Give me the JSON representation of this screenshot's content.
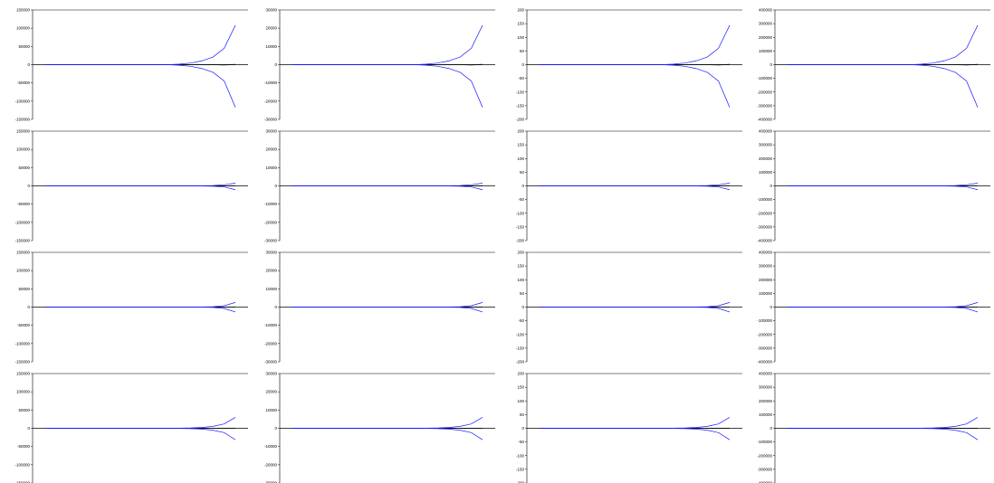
{
  "colors": {
    "band": "#1a1aff",
    "center": "#000000",
    "axis": "#000000"
  },
  "chart_data": {
    "type": "line",
    "grid": false,
    "legend": "none",
    "columns": [
      {
        "ylim": [
          -150000,
          150000
        ],
        "yticks": [
          150000,
          100000,
          50000,
          0,
          -50000,
          -100000,
          -150000
        ],
        "yticklabels": [
          "150000",
          "100000",
          "50000",
          "0",
          "-50000",
          "-100000",
          "-150000"
        ]
      },
      {
        "ylim": [
          -30000,
          30000
        ],
        "yticks": [
          30000,
          20000,
          10000,
          0,
          -10000,
          -20000,
          -30000
        ],
        "yticklabels": [
          "30000",
          "20000",
          "10000",
          "0",
          "-10000",
          "-20000",
          "-30000"
        ]
      },
      {
        "ylim": [
          -200,
          200
        ],
        "yticks": [
          200,
          150,
          100,
          50,
          0,
          -50,
          -100,
          -150,
          -200
        ],
        "yticklabels": [
          "200",
          "150",
          "100",
          "50",
          "0",
          "-50",
          "-100",
          "-150",
          "-200"
        ]
      },
      {
        "ylim": [
          -400000,
          400000
        ],
        "yticks": [
          400000,
          300000,
          200000,
          100000,
          0,
          -100000,
          -200000,
          -300000,
          -400000
        ],
        "yticklabels": [
          "400000",
          "300000",
          "200000",
          "100000",
          "0",
          "-100000",
          "-200000",
          "-300000",
          "-400000"
        ]
      }
    ],
    "rows": [
      {
        "upper": [
          0,
          0,
          0,
          0,
          0,
          0,
          0,
          0,
          0,
          0,
          0,
          0,
          0.01,
          0.03,
          0.07,
          0.14,
          0.3,
          0.72
        ],
        "lower": [
          0,
          0,
          0,
          0,
          0,
          0,
          0,
          0,
          0,
          0,
          0,
          0,
          -0.01,
          -0.03,
          -0.07,
          -0.14,
          -0.3,
          -0.78
        ],
        "center": [
          0,
          0,
          0,
          0,
          0,
          0,
          0,
          0,
          0,
          0,
          0,
          0,
          0,
          0,
          0,
          0,
          -0.005,
          0.005
        ]
      },
      {
        "upper": [
          0,
          0,
          0,
          0,
          0,
          0,
          0,
          0,
          0,
          0,
          0,
          0,
          0,
          0,
          0.002,
          0.007,
          0.02,
          0.05
        ],
        "lower": [
          0,
          0,
          0,
          0,
          0,
          0,
          0,
          0,
          0,
          0,
          0,
          0,
          0,
          0,
          -0.002,
          -0.007,
          -0.02,
          -0.07
        ],
        "center": [
          0,
          0,
          0,
          0,
          0,
          0,
          0,
          0,
          0,
          0,
          0,
          0,
          0,
          0,
          0,
          0,
          0,
          0
        ]
      },
      {
        "upper": [
          0,
          0,
          0,
          0,
          0,
          0,
          0,
          0,
          0,
          0,
          0,
          0,
          0,
          0,
          0.002,
          0.007,
          0.025,
          0.085
        ],
        "lower": [
          0,
          0,
          0,
          0,
          0,
          0,
          0,
          0,
          0,
          0,
          0,
          0,
          0,
          0,
          -0.002,
          -0.007,
          -0.025,
          -0.09
        ],
        "center": [
          0,
          0,
          0,
          0,
          0,
          0,
          0,
          0,
          0,
          0,
          0,
          0,
          0,
          0,
          0,
          0,
          0,
          0
        ]
      },
      {
        "upper": [
          0,
          0,
          0,
          0,
          0,
          0,
          0,
          0,
          0,
          0,
          0,
          0,
          0.002,
          0.006,
          0.015,
          0.035,
          0.08,
          0.2
        ],
        "lower": [
          0,
          0,
          0,
          0,
          0,
          0,
          0,
          0,
          0,
          0,
          0,
          0,
          -0.002,
          -0.006,
          -0.015,
          -0.035,
          -0.08,
          -0.21
        ],
        "center": [
          0,
          0,
          0,
          0,
          0,
          0,
          0,
          0,
          0,
          0,
          0,
          0,
          0,
          0,
          0,
          0,
          0,
          0
        ]
      }
    ]
  }
}
